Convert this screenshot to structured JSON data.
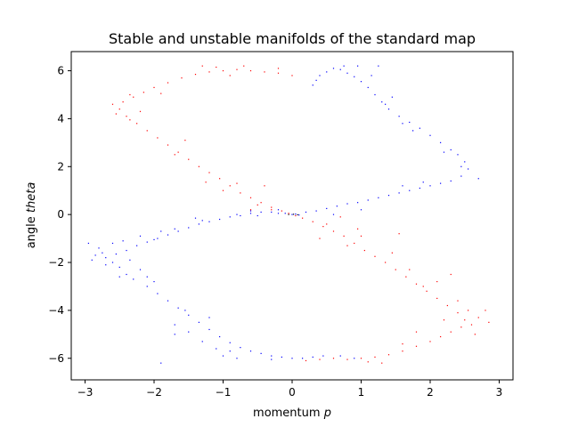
{
  "chart_data": {
    "type": "scatter",
    "title": "Stable and unstable manifolds of the standard map",
    "xlabel_prefix": "momentum ",
    "xlabel_var": "p",
    "ylabel_prefix": "angle ",
    "ylabel_var": "theta",
    "xlim": [
      -3.2,
      3.2
    ],
    "ylim": [
      -6.9,
      6.8
    ],
    "xticks": [
      -3,
      -2,
      -1,
      0,
      1,
      2,
      3
    ],
    "yticks": [
      -6,
      -4,
      -2,
      0,
      2,
      4,
      6
    ],
    "grid": false,
    "series": [
      {
        "color": "#0000ff",
        "points": [
          [
            -0.1,
            0.05
          ],
          [
            0.0,
            0.0
          ],
          [
            0.05,
            0.02
          ],
          [
            0.1,
            -0.02
          ],
          [
            -0.2,
            0.05
          ],
          [
            -0.3,
            0.1
          ],
          [
            -0.45,
            0.1
          ],
          [
            -0.6,
            0.05
          ],
          [
            -0.75,
            -0.05
          ],
          [
            -0.9,
            -0.1
          ],
          [
            -1.05,
            -0.2
          ],
          [
            -1.2,
            -0.3
          ],
          [
            -1.35,
            -0.4
          ],
          [
            -1.5,
            -0.55
          ],
          [
            -1.65,
            -0.7
          ],
          [
            -1.8,
            -0.85
          ],
          [
            -1.95,
            -1.0
          ],
          [
            -2.1,
            -1.15
          ],
          [
            -2.25,
            -1.3
          ],
          [
            -2.4,
            -1.5
          ],
          [
            -2.55,
            -1.65
          ],
          [
            -2.7,
            -1.8
          ],
          [
            -2.85,
            -1.7
          ],
          [
            -2.95,
            -1.2
          ],
          [
            -2.6,
            -2.0
          ],
          [
            -2.5,
            -2.2
          ],
          [
            -2.4,
            -2.5
          ],
          [
            -2.3,
            -2.7
          ],
          [
            -2.1,
            -3.0
          ],
          [
            -1.95,
            -3.3
          ],
          [
            -1.8,
            -3.6
          ],
          [
            -1.65,
            -3.9
          ],
          [
            -1.5,
            -4.2
          ],
          [
            -1.35,
            -4.5
          ],
          [
            -1.2,
            -4.8
          ],
          [
            -1.05,
            -5.1
          ],
          [
            -0.9,
            -5.35
          ],
          [
            -0.75,
            -5.55
          ],
          [
            -0.6,
            -5.7
          ],
          [
            -0.45,
            -5.8
          ],
          [
            -0.3,
            -5.9
          ],
          [
            -0.15,
            -5.95
          ],
          [
            0.0,
            -6.0
          ],
          [
            0.15,
            -6.0
          ],
          [
            0.3,
            -5.95
          ],
          [
            0.45,
            -5.9
          ],
          [
            -1.1,
            -5.6
          ],
          [
            -1.3,
            -5.3
          ],
          [
            -1.5,
            -4.9
          ],
          [
            -1.7,
            -4.6
          ],
          [
            -0.8,
            -6.0
          ],
          [
            -1.0,
            -5.9
          ],
          [
            -1.2,
            -4.3
          ],
          [
            -2.0,
            -2.8
          ],
          [
            -2.2,
            -2.3
          ],
          [
            -2.8,
            -1.4
          ],
          [
            -2.7,
            -2.1
          ],
          [
            -2.35,
            -1.9
          ],
          [
            -2.0,
            -1.05
          ],
          [
            -1.7,
            -0.6
          ],
          [
            -1.3,
            -0.25
          ],
          [
            -0.8,
            0.0
          ],
          [
            -0.5,
            -0.05
          ],
          [
            0.2,
            0.1
          ],
          [
            0.35,
            0.15
          ],
          [
            0.5,
            0.25
          ],
          [
            0.65,
            0.35
          ],
          [
            0.8,
            0.45
          ],
          [
            0.95,
            0.5
          ],
          [
            1.1,
            0.6
          ],
          [
            1.25,
            0.7
          ],
          [
            1.4,
            0.8
          ],
          [
            1.55,
            0.9
          ],
          [
            1.7,
            1.0
          ],
          [
            1.85,
            1.1
          ],
          [
            2.0,
            1.2
          ],
          [
            2.15,
            1.3
          ],
          [
            2.3,
            1.4
          ],
          [
            2.45,
            1.6
          ],
          [
            2.55,
            1.9
          ],
          [
            2.5,
            2.2
          ],
          [
            2.4,
            2.5
          ],
          [
            2.3,
            2.7
          ],
          [
            2.15,
            3.0
          ],
          [
            2.0,
            3.3
          ],
          [
            1.85,
            3.6
          ],
          [
            1.7,
            3.85
          ],
          [
            1.55,
            4.1
          ],
          [
            1.4,
            4.4
          ],
          [
            1.3,
            4.7
          ],
          [
            1.2,
            5.0
          ],
          [
            1.1,
            5.3
          ],
          [
            1.0,
            5.55
          ],
          [
            0.9,
            5.75
          ],
          [
            0.8,
            5.9
          ],
          [
            0.7,
            6.05
          ],
          [
            0.6,
            6.1
          ],
          [
            0.75,
            6.2
          ],
          [
            0.95,
            6.2
          ],
          [
            1.25,
            6.2
          ],
          [
            0.5,
            5.95
          ],
          [
            0.4,
            5.8
          ],
          [
            0.35,
            5.6
          ],
          [
            1.45,
            4.9
          ],
          [
            1.6,
            3.8
          ],
          [
            2.2,
            2.6
          ],
          [
            2.45,
            2.0
          ],
          [
            1.9,
            1.35
          ],
          [
            1.0,
            0.2
          ],
          [
            0.6,
            0.0
          ],
          [
            -0.2,
            0.2
          ],
          [
            -0.6,
            0.15
          ],
          [
            -1.4,
            -0.15
          ],
          [
            -1.9,
            -0.7
          ],
          [
            -2.6,
            -1.2
          ],
          [
            -2.75,
            -1.6
          ],
          [
            -2.5,
            -2.6
          ],
          [
            -1.55,
            -4.0
          ],
          [
            -0.9,
            -5.7
          ],
          [
            -0.3,
            -6.05
          ],
          [
            0.9,
            -6.0
          ],
          [
            0.7,
            -5.9
          ],
          [
            -1.9,
            -6.2
          ],
          [
            -1.7,
            -5.0
          ],
          [
            -2.1,
            -2.6
          ],
          [
            -2.9,
            -1.9
          ],
          [
            -2.45,
            -1.1
          ],
          [
            -2.2,
            -0.9
          ],
          [
            1.6,
            1.2
          ],
          [
            2.7,
            1.5
          ],
          [
            0.3,
            5.4
          ],
          [
            1.15,
            5.8
          ],
          [
            1.35,
            4.6
          ],
          [
            1.75,
            3.5
          ]
        ]
      },
      {
        "color": "#ff0000",
        "points": [
          [
            0.05,
            -0.05
          ],
          [
            -0.05,
            0.05
          ],
          [
            -0.15,
            0.15
          ],
          [
            -0.3,
            0.3
          ],
          [
            -0.45,
            0.5
          ],
          [
            -0.6,
            0.7
          ],
          [
            -0.75,
            0.9
          ],
          [
            -0.9,
            1.2
          ],
          [
            -1.05,
            1.5
          ],
          [
            -1.2,
            1.75
          ],
          [
            -1.35,
            2.0
          ],
          [
            -1.5,
            2.3
          ],
          [
            -1.65,
            2.6
          ],
          [
            -1.8,
            2.9
          ],
          [
            -1.95,
            3.2
          ],
          [
            -2.1,
            3.5
          ],
          [
            -2.25,
            3.8
          ],
          [
            -2.4,
            4.1
          ],
          [
            -2.5,
            4.4
          ],
          [
            -2.45,
            4.7
          ],
          [
            -2.3,
            4.9
          ],
          [
            -2.15,
            5.1
          ],
          [
            -2.0,
            5.3
          ],
          [
            -1.8,
            5.5
          ],
          [
            -1.6,
            5.7
          ],
          [
            -1.4,
            5.85
          ],
          [
            -1.2,
            5.95
          ],
          [
            -1.0,
            6.0
          ],
          [
            -0.8,
            6.05
          ],
          [
            -0.6,
            6.0
          ],
          [
            -0.4,
            5.95
          ],
          [
            -0.2,
            5.9
          ],
          [
            0.0,
            5.8
          ],
          [
            -1.3,
            6.2
          ],
          [
            -1.1,
            6.15
          ],
          [
            -2.55,
            4.2
          ],
          [
            -2.6,
            4.6
          ],
          [
            -2.35,
            3.95
          ],
          [
            -1.7,
            2.5
          ],
          [
            -1.0,
            1.0
          ],
          [
            -0.8,
            1.3
          ],
          [
            -0.5,
            0.4
          ],
          [
            -0.3,
            0.2
          ],
          [
            0.15,
            -0.15
          ],
          [
            0.3,
            -0.3
          ],
          [
            0.45,
            -0.5
          ],
          [
            0.6,
            -0.7
          ],
          [
            0.75,
            -0.9
          ],
          [
            0.9,
            -1.2
          ],
          [
            1.05,
            -1.5
          ],
          [
            1.2,
            -1.75
          ],
          [
            1.35,
            -2.0
          ],
          [
            1.5,
            -2.3
          ],
          [
            1.65,
            -2.6
          ],
          [
            1.8,
            -2.9
          ],
          [
            1.95,
            -3.2
          ],
          [
            2.1,
            -3.5
          ],
          [
            2.25,
            -3.8
          ],
          [
            2.4,
            -4.1
          ],
          [
            2.5,
            -4.4
          ],
          [
            2.6,
            -4.6
          ],
          [
            2.7,
            -4.3
          ],
          [
            2.8,
            -4.0
          ],
          [
            2.85,
            -4.5
          ],
          [
            2.45,
            -4.7
          ],
          [
            2.3,
            -4.9
          ],
          [
            2.15,
            -5.1
          ],
          [
            2.0,
            -5.3
          ],
          [
            1.8,
            -5.5
          ],
          [
            1.6,
            -5.7
          ],
          [
            1.4,
            -5.85
          ],
          [
            1.2,
            -5.95
          ],
          [
            1.0,
            -6.0
          ],
          [
            0.8,
            -6.05
          ],
          [
            0.6,
            -6.0
          ],
          [
            0.4,
            -6.05
          ],
          [
            0.2,
            -6.1
          ],
          [
            1.3,
            -6.2
          ],
          [
            1.1,
            -6.15
          ],
          [
            2.55,
            -4.0
          ],
          [
            2.2,
            -4.4
          ],
          [
            1.9,
            -3.0
          ],
          [
            1.7,
            -2.3
          ],
          [
            1.0,
            -0.9
          ],
          [
            0.8,
            -1.3
          ],
          [
            0.5,
            -0.4
          ],
          [
            1.8,
            -4.9
          ],
          [
            1.6,
            -5.4
          ],
          [
            2.65,
            -5.0
          ],
          [
            2.4,
            -3.6
          ],
          [
            1.45,
            -1.6
          ],
          [
            0.95,
            -0.6
          ],
          [
            0.7,
            -0.1
          ],
          [
            -1.55,
            3.1
          ],
          [
            -2.2,
            4.3
          ],
          [
            -1.9,
            5.05
          ],
          [
            -0.9,
            5.8
          ],
          [
            -0.2,
            6.1
          ],
          [
            -0.6,
            0.2
          ],
          [
            -1.25,
            1.35
          ],
          [
            2.3,
            -2.5
          ],
          [
            2.1,
            -2.8
          ],
          [
            1.55,
            -0.8
          ],
          [
            0.4,
            -1.0
          ],
          [
            -0.4,
            1.2
          ],
          [
            -2.35,
            5.0
          ],
          [
            -0.7,
            6.2
          ]
        ]
      },
      {
        "color": "#000000",
        "points": [
          [
            -0.05,
            0.0
          ],
          [
            0.02,
            0.01
          ],
          [
            0.08,
            -0.01
          ]
        ]
      }
    ]
  }
}
